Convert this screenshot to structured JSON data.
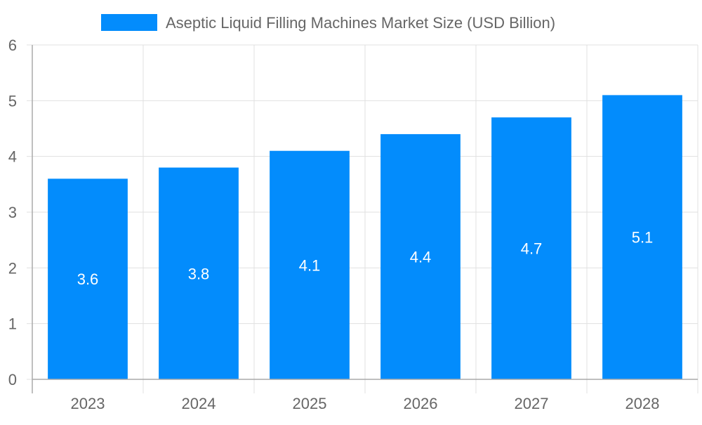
{
  "chart_data": {
    "type": "bar",
    "title": "",
    "categories": [
      "2023",
      "2024",
      "2025",
      "2026",
      "2027",
      "2028"
    ],
    "series": [
      {
        "name": "Aseptic Liquid Filling Machines Market Size (USD Billion)",
        "values": [
          3.6,
          3.8,
          4.1,
          4.4,
          4.7,
          5.1
        ],
        "color": "#038cfc"
      }
    ],
    "data_labels": [
      "3.6",
      "3.8",
      "4.1",
      "4.4",
      "4.7",
      "5.1"
    ],
    "xlabel": "",
    "ylabel": "",
    "ylim": [
      0,
      6
    ],
    "yticks": [
      "0",
      "1",
      "2",
      "3",
      "4",
      "5",
      "6"
    ],
    "grid": true,
    "legend_position": "top"
  },
  "legend": {
    "label": "Aseptic Liquid Filling Machines Market Size (USD Billion)",
    "swatch_color": "#038cfc"
  },
  "colors": {
    "bar": "#038cfc",
    "grid": "#e0e0e0",
    "axis": "#aaaaaa",
    "tick_text": "#666666",
    "label_text": "#ffffff"
  }
}
